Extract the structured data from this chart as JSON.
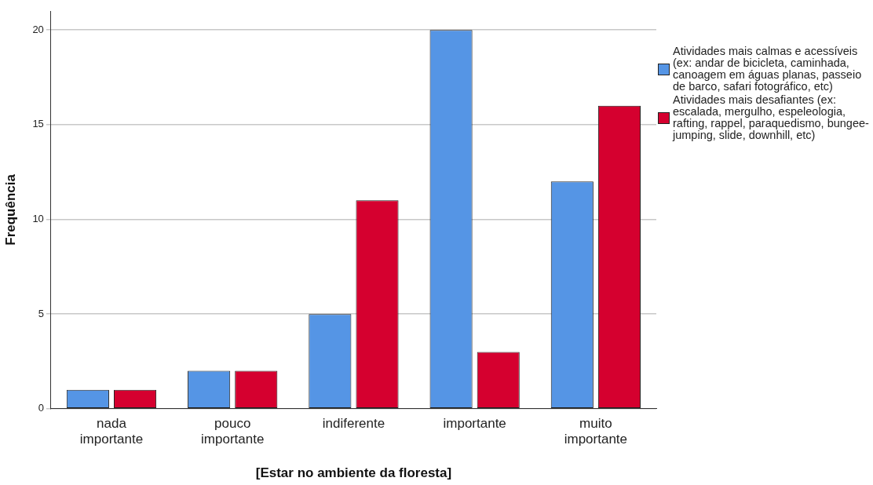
{
  "chart_data": {
    "type": "bar",
    "xlabel": "[Estar no ambiente da floresta]",
    "ylabel": "Frequência",
    "categories": [
      "nada importante",
      "pouco importante",
      "indiferente",
      "importante",
      "muito importante"
    ],
    "series": [
      {
        "name": "Atividades mais calmas e acessíveis (ex: andar de bicicleta, caminhada, canoagem em águas planas, passeio de barco, safari fotográfico, etc)",
        "color": "#5595e5",
        "values": [
          1,
          2,
          5,
          20,
          12
        ]
      },
      {
        "name": "Atividades mais desafiantes (ex: escalada, mergulho, espeleologia, rafting, rappel, paraquedismo, bungee-jumping, slide, downhill, etc)",
        "color": "#d5002f",
        "values": [
          1,
          2,
          11,
          3,
          16
        ]
      }
    ],
    "ylim": [
      0,
      21
    ],
    "yticks": [
      0,
      5,
      10,
      15,
      20
    ],
    "grid": "y",
    "legend": "right"
  }
}
